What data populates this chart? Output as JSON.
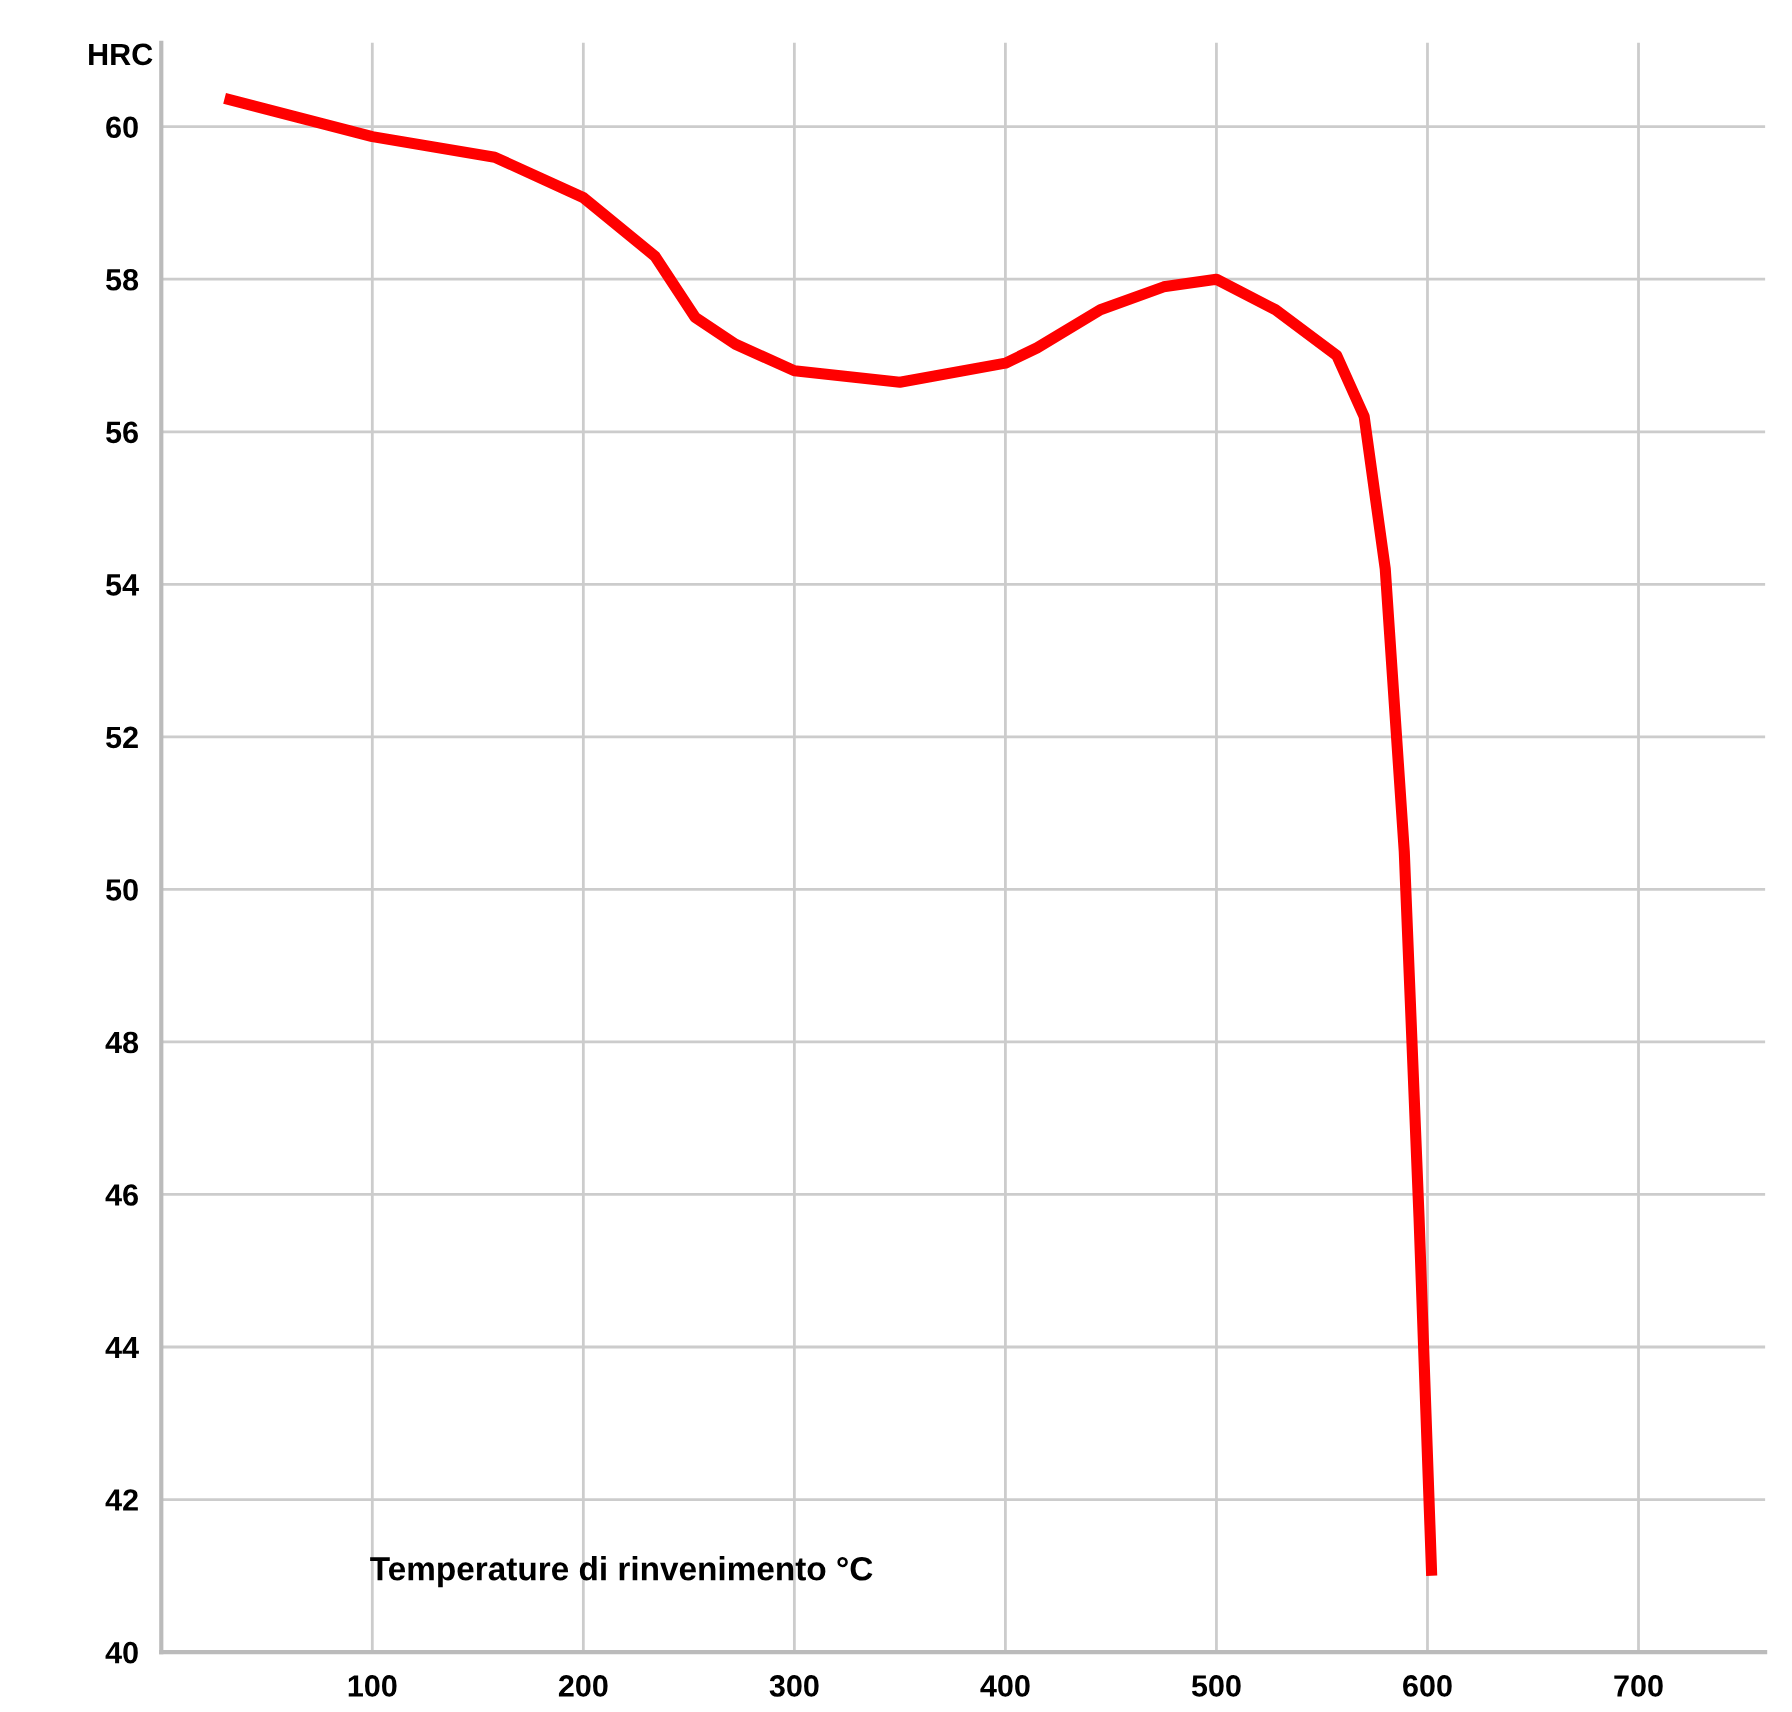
{
  "chart_data": {
    "type": "line",
    "xlabel": "Temperature di rinvenimento °C",
    "ylabel": "HRC",
    "x": [
      30,
      100,
      158,
      200,
      234,
      253,
      272,
      300,
      350,
      400,
      415,
      445,
      475,
      500,
      528,
      557,
      570,
      580,
      589,
      596,
      602
    ],
    "series": [
      {
        "color": "#ff0000",
        "values": [
          60.37,
          59.87,
          59.6,
          59.07,
          58.3,
          57.5,
          57.15,
          56.8,
          56.65,
          56.9,
          57.1,
          57.6,
          57.9,
          58.0,
          57.6,
          57.0,
          56.2,
          54.2,
          50.5,
          45.7,
          41.0
        ]
      }
    ],
    "xlim": [
      0,
      760
    ],
    "ylim": [
      40,
      61.1
    ],
    "xticks": [
      100,
      200,
      300,
      400,
      500,
      600,
      700
    ],
    "yticks": [
      40,
      42,
      44,
      46,
      48,
      50,
      52,
      54,
      56,
      58,
      60
    ],
    "grid": true,
    "marker": "none",
    "line_style": "solid",
    "legend": false
  }
}
